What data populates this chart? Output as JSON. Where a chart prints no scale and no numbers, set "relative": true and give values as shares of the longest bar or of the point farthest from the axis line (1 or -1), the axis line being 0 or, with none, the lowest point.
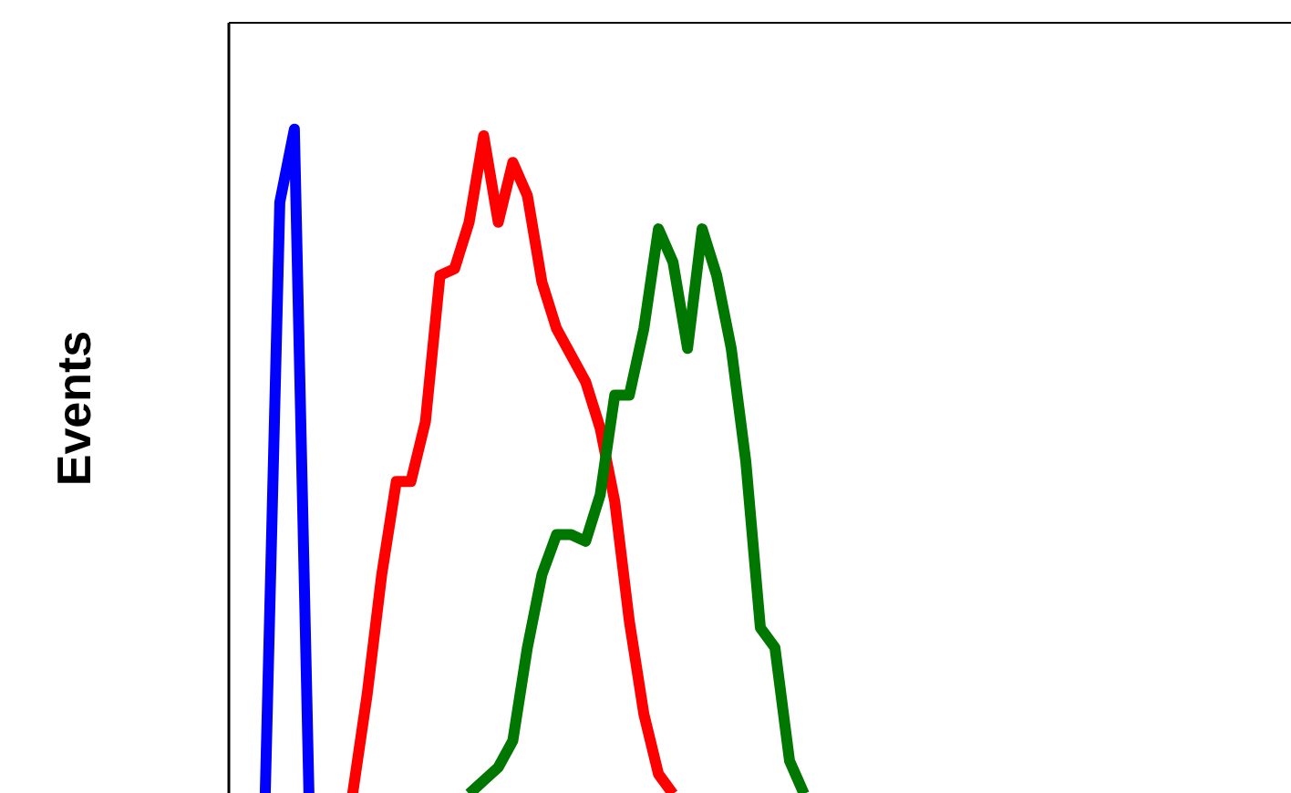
{
  "chart_data": {
    "type": "line",
    "ylabel": "Events",
    "relative": true,
    "categories": [
      null,
      null,
      null,
      null,
      null,
      null,
      null,
      null,
      null,
      null,
      null,
      null,
      null,
      null,
      null,
      null,
      null,
      null,
      null,
      null,
      null,
      null,
      null,
      null,
      null,
      null,
      null,
      null,
      null,
      null,
      null,
      null,
      null,
      null,
      null,
      null,
      null,
      null,
      null,
      null,
      null,
      null,
      null,
      null,
      null,
      null,
      null,
      null,
      null,
      null,
      null,
      null,
      null,
      null,
      null,
      null,
      null,
      null,
      null,
      null,
      null,
      null,
      null,
      null,
      null,
      null,
      null,
      null,
      null,
      null,
      null,
      null,
      null
    ],
    "series": [
      {
        "color": "#0000ff",
        "values": [
          null,
          null,
          0,
          0.89,
          1.0,
          0,
          null,
          null,
          null,
          null,
          null,
          null,
          null,
          null,
          null,
          null,
          null,
          null,
          null,
          null,
          null,
          null,
          null,
          null,
          null,
          null,
          null,
          null,
          null,
          null,
          null,
          null,
          null,
          null,
          null,
          null,
          null,
          null,
          null,
          null,
          null,
          null,
          null,
          null,
          null,
          null,
          null,
          null,
          null,
          null,
          null,
          null,
          null,
          null,
          null,
          null,
          null,
          null,
          null,
          null,
          null,
          null,
          null,
          null,
          null,
          null,
          null,
          null,
          null,
          null,
          null,
          null,
          null
        ]
      },
      {
        "color": "#ff0000",
        "values": [
          null,
          null,
          null,
          null,
          null,
          null,
          null,
          null,
          0,
          0.15,
          0.33,
          0.47,
          0.47,
          0.56,
          0.78,
          0.79,
          0.86,
          0.99,
          0.86,
          0.95,
          0.9,
          0.77,
          0.7,
          0.66,
          0.62,
          0.55,
          0.44,
          0.26,
          0.12,
          0.03,
          0,
          null,
          null,
          null,
          null,
          null,
          null,
          null,
          null,
          null,
          null,
          null,
          null,
          null,
          null,
          null,
          null,
          null,
          null,
          null,
          null,
          null,
          null,
          null,
          null,
          null,
          null,
          null,
          null,
          null,
          null,
          null,
          null,
          null,
          null,
          null,
          null,
          null,
          null,
          null,
          null,
          null,
          null
        ]
      },
      {
        "color": "#007700",
        "values": [
          null,
          null,
          null,
          null,
          null,
          null,
          null,
          null,
          null,
          null,
          null,
          null,
          null,
          null,
          null,
          null,
          0,
          0.02,
          0.04,
          0.08,
          0.22,
          0.33,
          0.39,
          0.39,
          0.38,
          0.45,
          0.6,
          0.6,
          0.7,
          0.85,
          0.8,
          0.67,
          0.85,
          0.78,
          0.67,
          0.5,
          0.25,
          0.22,
          0.05,
          0,
          null,
          null,
          null,
          null,
          null,
          null,
          null,
          null,
          null,
          null,
          null,
          null,
          null,
          null,
          null,
          null,
          null,
          null,
          null,
          null,
          null,
          null,
          null,
          null,
          null,
          null,
          null,
          null,
          null,
          null,
          null,
          null,
          null
        ]
      }
    ]
  }
}
